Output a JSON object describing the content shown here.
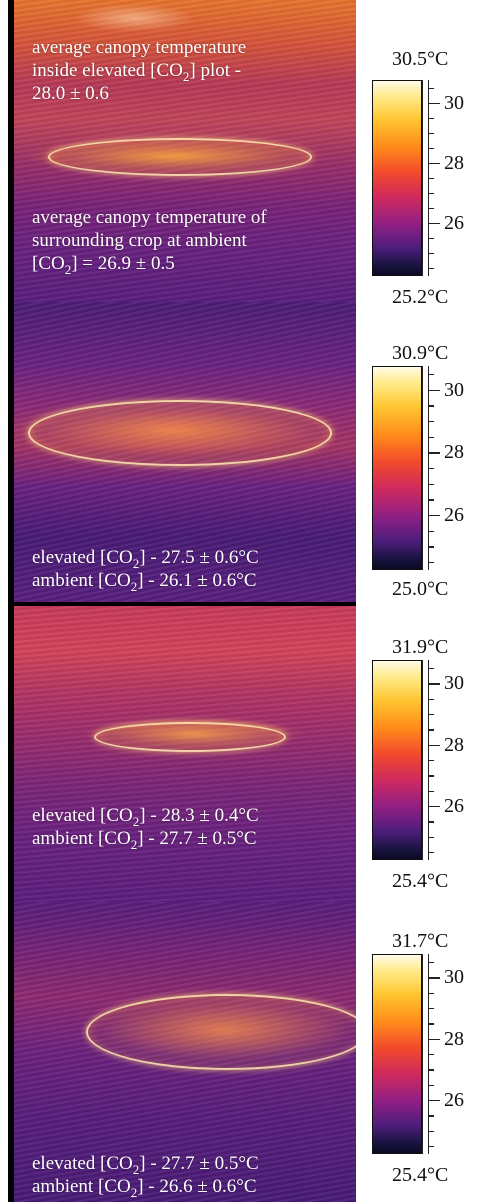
{
  "panels": [
    {
      "captions": [
        [
          "average canopy temperature",
          "inside elevated [CO<sub>2</sub>] plot -",
          "28.0 ± 0.6"
        ],
        [
          "average canopy temperature of",
          "surrounding crop at ambient",
          "[CO<sub>2</sub>] =  26.9 ± 0.5"
        ]
      ],
      "scale": {
        "max": "30.5°C",
        "min": "25.2°C",
        "ticks": [
          "30",
          "28",
          "26"
        ]
      }
    },
    {
      "captions": [
        [
          "elevated [CO<sub>2</sub>] - 27.5 ± 0.6°C",
          "ambient [CO<sub>2</sub>] - 26.1 ± 0.6°C"
        ]
      ],
      "scale": {
        "max": "30.9°C",
        "min": "25.0°C",
        "ticks": [
          "30",
          "28",
          "26"
        ]
      }
    },
    {
      "captions": [
        [
          "elevated [CO<sub>2</sub>] - 28.3 ± 0.4°C",
          "ambient [CO<sub>2</sub>] - 27.7 ± 0.5°C"
        ]
      ],
      "scale": {
        "max": "31.9°C",
        "min": "25.4°C",
        "ticks": [
          "30",
          "28",
          "26"
        ]
      }
    },
    {
      "captions": [
        [
          "elevated [CO<sub>2</sub>] - 27.7 ± 0.5°C",
          "ambient [CO<sub>2</sub>] - 26.6 ± 0.6°C"
        ]
      ],
      "scale": {
        "max": "31.7°C",
        "min": "25.4°C",
        "ticks": [
          "30",
          "28",
          "26"
        ]
      }
    }
  ],
  "colormap": [
    "#0a0a22",
    "#4d1e7c",
    "#d02a5e",
    "#ff8a1a",
    "#ffeb8a",
    "#fffbe8"
  ]
}
